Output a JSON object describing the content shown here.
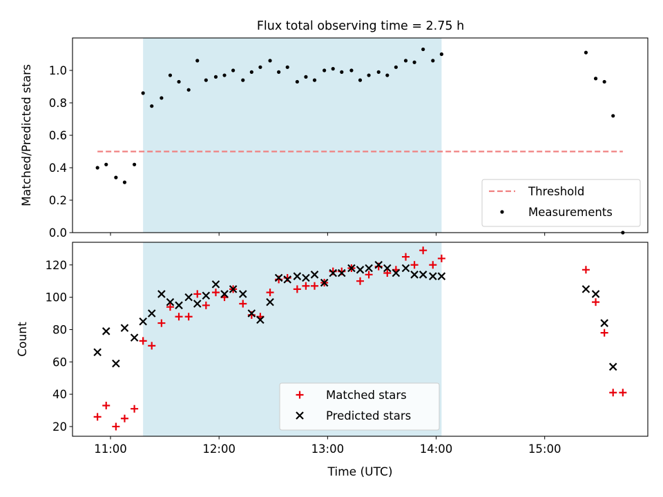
{
  "title": "Flux total observing time = 2.75 h",
  "chart_data": [
    {
      "type": "scatter",
      "ylabel": "Matched/Predicted stars",
      "xlim": [
        10.65,
        15.95
      ],
      "ylim": [
        0.0,
        1.2
      ],
      "yticks": [
        0.0,
        0.2,
        0.4,
        0.6,
        0.8,
        1.0
      ],
      "ytick_labels": [
        "0.0",
        "0.2",
        "0.4",
        "0.6",
        "0.8",
        "1.0"
      ],
      "shaded_span": [
        11.3,
        14.05
      ],
      "threshold": {
        "name": "Threshold",
        "value": 0.5,
        "x_range": [
          10.88,
          15.72
        ],
        "color": "#f08080"
      },
      "legend_position": "lower right",
      "series": [
        {
          "name": "Measurements",
          "marker": "dot",
          "color": "#000000",
          "x": [
            10.88,
            10.96,
            11.05,
            11.13,
            11.22,
            11.3,
            11.38,
            11.47,
            11.55,
            11.63,
            11.72,
            11.8,
            11.88,
            11.97,
            12.05,
            12.13,
            12.22,
            12.3,
            12.38,
            12.47,
            12.55,
            12.63,
            12.72,
            12.8,
            12.88,
            12.97,
            13.05,
            13.13,
            13.22,
            13.3,
            13.38,
            13.47,
            13.55,
            13.63,
            13.72,
            13.8,
            13.88,
            13.97,
            14.05,
            15.38,
            15.47,
            15.55,
            15.63,
            15.72
          ],
          "y": [
            0.4,
            0.42,
            0.34,
            0.31,
            0.42,
            0.86,
            0.78,
            0.83,
            0.97,
            0.93,
            0.88,
            1.06,
            0.94,
            0.96,
            0.97,
            1.0,
            0.94,
            0.99,
            1.02,
            1.06,
            0.99,
            1.02,
            0.93,
            0.96,
            0.94,
            1.0,
            1.01,
            0.99,
            1.0,
            0.94,
            0.97,
            0.99,
            0.97,
            1.02,
            1.06,
            1.05,
            1.13,
            1.06,
            1.1,
            1.11,
            0.95,
            0.93,
            0.72,
            0.0
          ]
        }
      ]
    },
    {
      "type": "scatter",
      "xlabel": "Time (UTC)",
      "ylabel": "Count",
      "xlim": [
        10.65,
        15.95
      ],
      "ylim": [
        14,
        134
      ],
      "xticks": [
        11,
        12,
        13,
        14,
        15
      ],
      "xtick_labels": [
        "11:00",
        "12:00",
        "13:00",
        "14:00",
        "15:00"
      ],
      "yticks": [
        20,
        40,
        60,
        80,
        100,
        120
      ],
      "ytick_labels": [
        "20",
        "40",
        "60",
        "80",
        "100",
        "120"
      ],
      "shaded_span": [
        11.3,
        14.05
      ],
      "legend_position": "lower center",
      "series": [
        {
          "name": "Matched stars",
          "marker": "plus",
          "color": "#e8000b",
          "x": [
            10.88,
            10.96,
            11.05,
            11.13,
            11.22,
            11.3,
            11.38,
            11.47,
            11.55,
            11.63,
            11.72,
            11.8,
            11.88,
            11.97,
            12.05,
            12.13,
            12.22,
            12.3,
            12.38,
            12.47,
            12.55,
            12.63,
            12.72,
            12.8,
            12.88,
            12.97,
            13.05,
            13.13,
            13.22,
            13.3,
            13.38,
            13.47,
            13.55,
            13.63,
            13.72,
            13.8,
            13.88,
            13.97,
            14.05,
            15.38,
            15.47,
            15.55,
            15.63,
            15.72
          ],
          "y": [
            26,
            33,
            20,
            25,
            31,
            73,
            70,
            84,
            94,
            88,
            88,
            102,
            95,
            103,
            100,
            105,
            96,
            89,
            88,
            103,
            111,
            112,
            105,
            107,
            107,
            109,
            116,
            116,
            118,
            110,
            114,
            119,
            115,
            117,
            125,
            120,
            129,
            120,
            124,
            117,
            97,
            78,
            41,
            41
          ]
        },
        {
          "name": "Predicted stars",
          "marker": "x",
          "color": "#000000",
          "x": [
            10.88,
            10.96,
            11.05,
            11.13,
            11.22,
            11.3,
            11.38,
            11.47,
            11.55,
            11.63,
            11.72,
            11.8,
            11.88,
            11.97,
            12.05,
            12.13,
            12.22,
            12.3,
            12.38,
            12.47,
            12.55,
            12.63,
            12.72,
            12.8,
            12.88,
            12.97,
            13.05,
            13.13,
            13.22,
            13.3,
            13.38,
            13.47,
            13.55,
            13.63,
            13.72,
            13.8,
            13.88,
            13.97,
            14.05,
            15.38,
            15.47,
            15.55,
            15.63
          ],
          "y": [
            66,
            79,
            59,
            81,
            75,
            85,
            90,
            102,
            97,
            95,
            100,
            96,
            101,
            108,
            102,
            105,
            102,
            90,
            86,
            97,
            112,
            111,
            113,
            112,
            114,
            109,
            115,
            115,
            118,
            117,
            118,
            120,
            118,
            115,
            118,
            114,
            114,
            113,
            113,
            105,
            102,
            84,
            57
          ]
        }
      ]
    }
  ]
}
